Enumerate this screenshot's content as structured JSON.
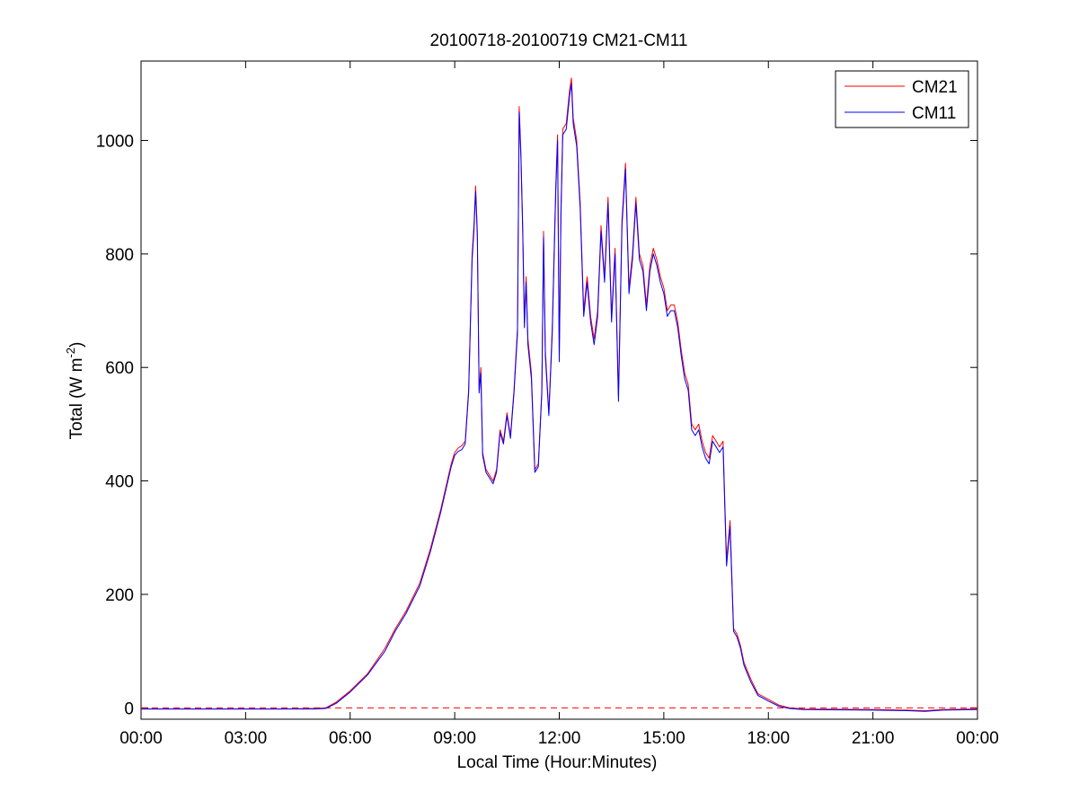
{
  "chart_data": {
    "type": "line",
    "title": "20100718-20100719 CM21-CM11",
    "xlabel": "Local Time (Hour:Minutes)",
    "ylabel": "Total (W m-2)",
    "ylabel_parts": {
      "main": "Total (W m",
      "sup": "-2",
      "close": ")"
    },
    "xlim_hours": [
      0,
      24
    ],
    "ylim": [
      -20,
      1140
    ],
    "x_ticks": [
      {
        "h": 0,
        "label": "00:00"
      },
      {
        "h": 3,
        "label": "03:00"
      },
      {
        "h": 6,
        "label": "06:00"
      },
      {
        "h": 9,
        "label": "09:00"
      },
      {
        "h": 12,
        "label": "12:00"
      },
      {
        "h": 15,
        "label": "15:00"
      },
      {
        "h": 18,
        "label": "18:00"
      },
      {
        "h": 21,
        "label": "21:00"
      },
      {
        "h": 24,
        "label": "00:00"
      }
    ],
    "y_ticks": [
      {
        "v": 0,
        "label": "0"
      },
      {
        "v": 200,
        "label": "200"
      },
      {
        "v": 400,
        "label": "400"
      },
      {
        "v": 600,
        "label": "600"
      },
      {
        "v": 800,
        "label": "800"
      },
      {
        "v": 1000,
        "label": "1000"
      }
    ],
    "zero_line": {
      "y": 0,
      "color": "#ff0000",
      "style": "dashed"
    },
    "legend": {
      "position": "top-right"
    },
    "series": [
      {
        "name": "CM21",
        "color": "#ff0000",
        "points": [
          [
            0,
            -2
          ],
          [
            2,
            -2
          ],
          [
            4,
            -2
          ],
          [
            5.0,
            -1
          ],
          [
            5.3,
            0
          ],
          [
            5.6,
            10
          ],
          [
            6.0,
            30
          ],
          [
            6.5,
            60
          ],
          [
            7.0,
            105
          ],
          [
            7.3,
            140
          ],
          [
            7.6,
            170
          ],
          [
            8.0,
            220
          ],
          [
            8.3,
            280
          ],
          [
            8.6,
            350
          ],
          [
            8.9,
            430
          ],
          [
            9.0,
            450
          ],
          [
            9.1,
            458
          ],
          [
            9.2,
            462
          ],
          [
            9.3,
            470
          ],
          [
            9.4,
            560
          ],
          [
            9.5,
            800
          ],
          [
            9.55,
            850
          ],
          [
            9.6,
            920
          ],
          [
            9.65,
            840
          ],
          [
            9.7,
            560
          ],
          [
            9.75,
            600
          ],
          [
            9.8,
            450
          ],
          [
            9.9,
            420
          ],
          [
            10.0,
            410
          ],
          [
            10.1,
            400
          ],
          [
            10.2,
            420
          ],
          [
            10.3,
            490
          ],
          [
            10.4,
            470
          ],
          [
            10.5,
            520
          ],
          [
            10.6,
            480
          ],
          [
            10.7,
            560
          ],
          [
            10.8,
            670
          ],
          [
            10.85,
            1060
          ],
          [
            10.9,
            980
          ],
          [
            10.95,
            850
          ],
          [
            11.0,
            680
          ],
          [
            11.05,
            760
          ],
          [
            11.1,
            650
          ],
          [
            11.2,
            590
          ],
          [
            11.3,
            420
          ],
          [
            11.4,
            430
          ],
          [
            11.5,
            560
          ],
          [
            11.55,
            840
          ],
          [
            11.6,
            630
          ],
          [
            11.7,
            520
          ],
          [
            11.8,
            670
          ],
          [
            11.9,
            920
          ],
          [
            11.95,
            1010
          ],
          [
            12.0,
            620
          ],
          [
            12.05,
            880
          ],
          [
            12.1,
            1020
          ],
          [
            12.2,
            1030
          ],
          [
            12.3,
            1090
          ],
          [
            12.35,
            1110
          ],
          [
            12.4,
            1040
          ],
          [
            12.5,
            1000
          ],
          [
            12.6,
            890
          ],
          [
            12.7,
            700
          ],
          [
            12.8,
            760
          ],
          [
            12.9,
            690
          ],
          [
            13.0,
            650
          ],
          [
            13.1,
            700
          ],
          [
            13.2,
            850
          ],
          [
            13.3,
            760
          ],
          [
            13.4,
            900
          ],
          [
            13.5,
            690
          ],
          [
            13.6,
            810
          ],
          [
            13.7,
            550
          ],
          [
            13.8,
            860
          ],
          [
            13.9,
            960
          ],
          [
            14.0,
            740
          ],
          [
            14.1,
            800
          ],
          [
            14.2,
            900
          ],
          [
            14.3,
            800
          ],
          [
            14.4,
            780
          ],
          [
            14.5,
            710
          ],
          [
            14.6,
            780
          ],
          [
            14.7,
            810
          ],
          [
            14.8,
            790
          ],
          [
            14.9,
            760
          ],
          [
            15.0,
            740
          ],
          [
            15.1,
            700
          ],
          [
            15.2,
            710
          ],
          [
            15.3,
            710
          ],
          [
            15.4,
            680
          ],
          [
            15.5,
            630
          ],
          [
            15.6,
            590
          ],
          [
            15.7,
            570
          ],
          [
            15.8,
            500
          ],
          [
            15.9,
            490
          ],
          [
            16.0,
            500
          ],
          [
            16.1,
            470
          ],
          [
            16.2,
            450
          ],
          [
            16.3,
            440
          ],
          [
            16.4,
            480
          ],
          [
            16.5,
            470
          ],
          [
            16.6,
            460
          ],
          [
            16.7,
            470
          ],
          [
            16.8,
            260
          ],
          [
            16.9,
            330
          ],
          [
            17.0,
            140
          ],
          [
            17.1,
            130
          ],
          [
            17.2,
            110
          ],
          [
            17.3,
            80
          ],
          [
            17.5,
            50
          ],
          [
            17.7,
            25
          ],
          [
            18.0,
            15
          ],
          [
            18.3,
            5
          ],
          [
            18.6,
            0
          ],
          [
            19.0,
            -2
          ],
          [
            21,
            -3
          ],
          [
            22,
            -4
          ],
          [
            22.5,
            -5
          ],
          [
            23,
            -3
          ],
          [
            24,
            -2
          ]
        ]
      },
      {
        "name": "CM11",
        "color": "#0000ff",
        "points": [
          [
            0,
            -2
          ],
          [
            2,
            -2
          ],
          [
            4,
            -2
          ],
          [
            5.0,
            -2
          ],
          [
            5.3,
            -1
          ],
          [
            5.6,
            8
          ],
          [
            6.0,
            28
          ],
          [
            6.5,
            58
          ],
          [
            7.0,
            100
          ],
          [
            7.3,
            136
          ],
          [
            7.6,
            166
          ],
          [
            8.0,
            215
          ],
          [
            8.3,
            275
          ],
          [
            8.6,
            345
          ],
          [
            8.9,
            425
          ],
          [
            9.0,
            445
          ],
          [
            9.1,
            452
          ],
          [
            9.2,
            455
          ],
          [
            9.3,
            465
          ],
          [
            9.4,
            555
          ],
          [
            9.5,
            790
          ],
          [
            9.55,
            840
          ],
          [
            9.6,
            910
          ],
          [
            9.65,
            830
          ],
          [
            9.7,
            555
          ],
          [
            9.75,
            590
          ],
          [
            9.8,
            445
          ],
          [
            9.9,
            415
          ],
          [
            10.0,
            405
          ],
          [
            10.1,
            395
          ],
          [
            10.2,
            415
          ],
          [
            10.3,
            485
          ],
          [
            10.4,
            465
          ],
          [
            10.5,
            515
          ],
          [
            10.6,
            475
          ],
          [
            10.7,
            555
          ],
          [
            10.8,
            660
          ],
          [
            10.85,
            1050
          ],
          [
            10.9,
            970
          ],
          [
            10.95,
            840
          ],
          [
            11.0,
            670
          ],
          [
            11.05,
            750
          ],
          [
            11.1,
            640
          ],
          [
            11.2,
            580
          ],
          [
            11.3,
            415
          ],
          [
            11.4,
            425
          ],
          [
            11.5,
            555
          ],
          [
            11.55,
            830
          ],
          [
            11.6,
            620
          ],
          [
            11.7,
            515
          ],
          [
            11.8,
            660
          ],
          [
            11.9,
            910
          ],
          [
            11.95,
            1000
          ],
          [
            12.0,
            610
          ],
          [
            12.05,
            870
          ],
          [
            12.1,
            1010
          ],
          [
            12.2,
            1020
          ],
          [
            12.3,
            1080
          ],
          [
            12.35,
            1100
          ],
          [
            12.4,
            1030
          ],
          [
            12.5,
            990
          ],
          [
            12.6,
            880
          ],
          [
            12.7,
            690
          ],
          [
            12.8,
            750
          ],
          [
            12.9,
            680
          ],
          [
            13.0,
            640
          ],
          [
            13.1,
            690
          ],
          [
            13.2,
            840
          ],
          [
            13.3,
            750
          ],
          [
            13.4,
            890
          ],
          [
            13.5,
            680
          ],
          [
            13.6,
            800
          ],
          [
            13.7,
            540
          ],
          [
            13.8,
            850
          ],
          [
            13.9,
            950
          ],
          [
            14.0,
            730
          ],
          [
            14.1,
            790
          ],
          [
            14.2,
            890
          ],
          [
            14.3,
            790
          ],
          [
            14.4,
            770
          ],
          [
            14.5,
            700
          ],
          [
            14.6,
            770
          ],
          [
            14.7,
            800
          ],
          [
            14.8,
            780
          ],
          [
            14.9,
            750
          ],
          [
            15.0,
            730
          ],
          [
            15.1,
            690
          ],
          [
            15.2,
            700
          ],
          [
            15.3,
            700
          ],
          [
            15.4,
            670
          ],
          [
            15.5,
            620
          ],
          [
            15.6,
            580
          ],
          [
            15.7,
            560
          ],
          [
            15.8,
            490
          ],
          [
            15.9,
            480
          ],
          [
            16.0,
            490
          ],
          [
            16.1,
            460
          ],
          [
            16.2,
            440
          ],
          [
            16.3,
            430
          ],
          [
            16.4,
            470
          ],
          [
            16.5,
            460
          ],
          [
            16.6,
            450
          ],
          [
            16.7,
            460
          ],
          [
            16.8,
            250
          ],
          [
            16.9,
            320
          ],
          [
            17.0,
            135
          ],
          [
            17.1,
            125
          ],
          [
            17.2,
            105
          ],
          [
            17.3,
            75
          ],
          [
            17.5,
            45
          ],
          [
            17.7,
            22
          ],
          [
            18.0,
            12
          ],
          [
            18.3,
            3
          ],
          [
            18.6,
            -1
          ],
          [
            19.0,
            -3
          ],
          [
            21,
            -4
          ],
          [
            22,
            -5
          ],
          [
            22.5,
            -6
          ],
          [
            23,
            -4
          ],
          [
            24,
            -3
          ]
        ]
      }
    ]
  }
}
